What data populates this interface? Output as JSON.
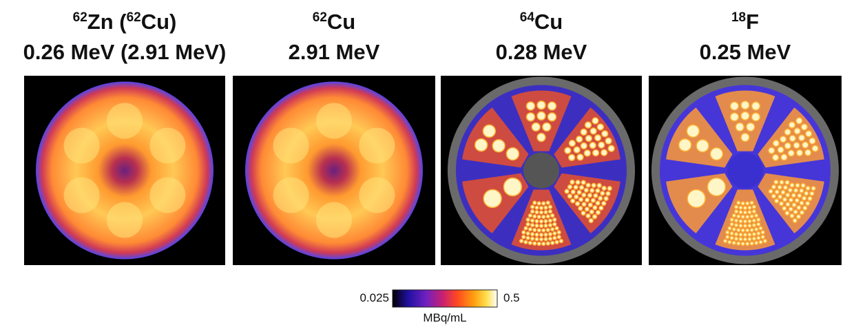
{
  "panels": [
    {
      "isotope": [
        {
          "text": "62",
          "sup": true
        },
        {
          "text": "Zn (",
          "sup": false
        },
        {
          "text": "62",
          "sup": true
        },
        {
          "text": "Cu)",
          "sup": false
        }
      ],
      "energy": "0.26 MeV (2.91 MeV)"
    },
    {
      "isotope": [
        {
          "text": "62",
          "sup": true
        },
        {
          "text": "Cu",
          "sup": false
        }
      ],
      "energy": "2.91 MeV"
    },
    {
      "isotope": [
        {
          "text": "64",
          "sup": true
        },
        {
          "text": "Cu",
          "sup": false
        }
      ],
      "energy": "0.28 MeV"
    },
    {
      "isotope": [
        {
          "text": "18",
          "sup": true
        },
        {
          "text": "F",
          "sup": false
        }
      ],
      "energy": "0.25 MeV"
    }
  ],
  "colorbar": {
    "min": "0.025",
    "max": "0.5",
    "unit": "MBq/mL"
  }
}
